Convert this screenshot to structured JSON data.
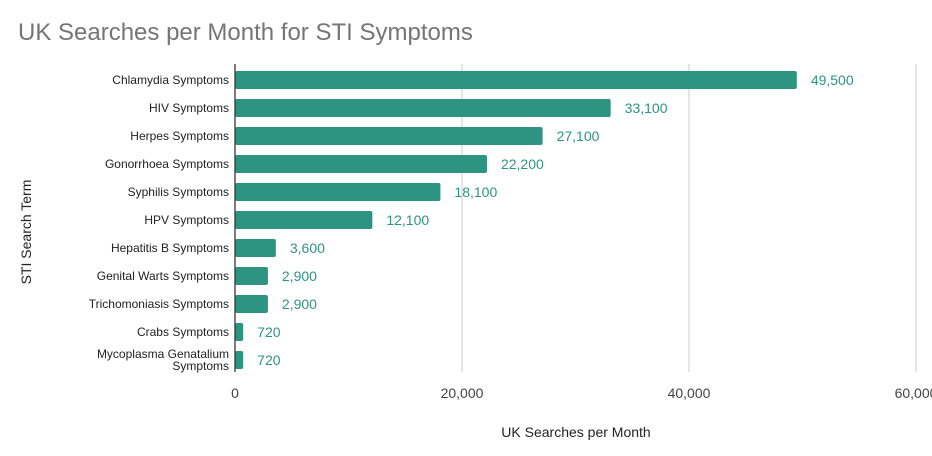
{
  "chart_data": {
    "type": "bar",
    "orientation": "horizontal",
    "title": "UK Searches per Month for STI Symptoms",
    "xlabel": "UK Searches per Month",
    "ylabel": "STI Search Term",
    "xlim": [
      0,
      60000
    ],
    "xticks": [
      0,
      20000,
      40000,
      60000
    ],
    "xtick_labels": [
      "0",
      "20,000",
      "40,000",
      "60,000"
    ],
    "grid": true,
    "bar_color": "#2e9482",
    "label_color": "#2e9482",
    "categories": [
      "Chlamydia Symptoms",
      "HIV Symptoms",
      "Herpes Symptoms",
      "Gonorrhoea Symptoms",
      "Syphilis Symptoms",
      "HPV Symptoms",
      "Hepatitis B Symptoms",
      "Genital Warts Symptoms",
      "Trichomoniasis Symptoms",
      "Crabs Symptoms",
      "Mycoplasma Genatalium Symptoms"
    ],
    "values": [
      49500,
      33100,
      27100,
      22200,
      18100,
      12100,
      3600,
      2900,
      2900,
      720,
      720
    ],
    "data_labels": [
      "49,500",
      "33,100",
      "27,100",
      "22,200",
      "18,100",
      "12,100",
      "3,600",
      "2,900",
      "2,900",
      "720",
      "720"
    ]
  }
}
